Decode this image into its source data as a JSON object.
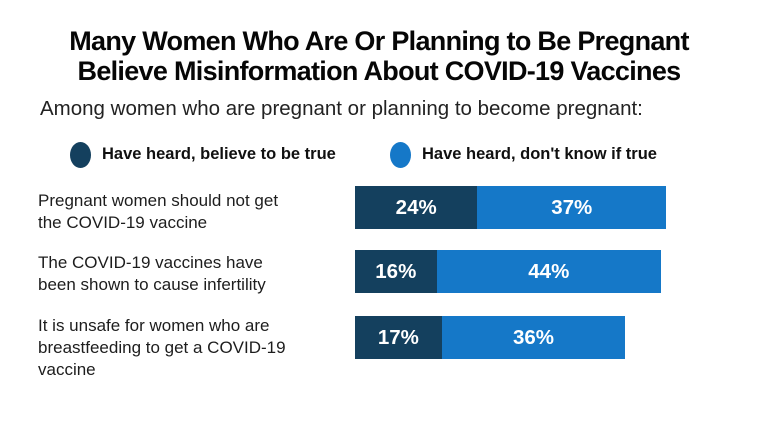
{
  "title_lines": [
    "Many Women Who Are Or Planning to Be Pregnant",
    "Believe Misinformation About COVID-19 Vaccines"
  ],
  "subtitle": "Among women who are pregnant or planning to become pregnant:",
  "colors": {
    "believe": "#14405E",
    "dont_know": "#1578C8",
    "bar_text": "#FFFFFF",
    "background": "#FFFFFF",
    "text": "#1D1D1D"
  },
  "legend": {
    "believe": {
      "label": "Have heard, believe to be true"
    },
    "dont_know": {
      "label": "Have heard, don't know if true"
    }
  },
  "rows": [
    {
      "label_lines": [
        "Pregnant women should not get",
        "the COVID-19 vaccine"
      ],
      "believe_pct": 24,
      "believe_text": "24%",
      "dont_know_pct": 37,
      "dont_know_text": "37%"
    },
    {
      "label_lines": [
        "The COVID-19 vaccines have",
        "been shown to cause infertility"
      ],
      "believe_pct": 16,
      "believe_text": "16%",
      "dont_know_pct": 44,
      "dont_know_text": "44%"
    },
    {
      "label_lines": [
        "It is unsafe for women who are",
        "breastfeeding to get a COVID-19",
        "vaccine"
      ],
      "believe_pct": 17,
      "believe_text": "17%",
      "dont_know_pct": 36,
      "dont_know_text": "36%"
    }
  ],
  "chart_data": {
    "type": "bar",
    "orientation": "horizontal",
    "stacked": true,
    "title": "Many Women Who Are Or Planning to Be Pregnant Believe Misinformation About COVID-19 Vaccines",
    "subtitle": "Among women who are pregnant or planning to become pregnant:",
    "categories": [
      "Pregnant women should not get the COVID-19 vaccine",
      "The COVID-19 vaccines have been shown to cause infertility",
      "It is unsafe for women who are breastfeeding to get a COVID-19 vaccine"
    ],
    "series": [
      {
        "name": "Have heard, believe to be true",
        "color": "#14405E",
        "values": [
          24,
          16,
          17
        ]
      },
      {
        "name": "Have heard, don't know if true",
        "color": "#1578C8",
        "values": [
          37,
          44,
          36
        ]
      }
    ],
    "unit": "%",
    "value_labels": "inside-center",
    "xlim": [
      0,
      61
    ],
    "grid": false,
    "axes_visible": false,
    "legend_position": "top"
  }
}
